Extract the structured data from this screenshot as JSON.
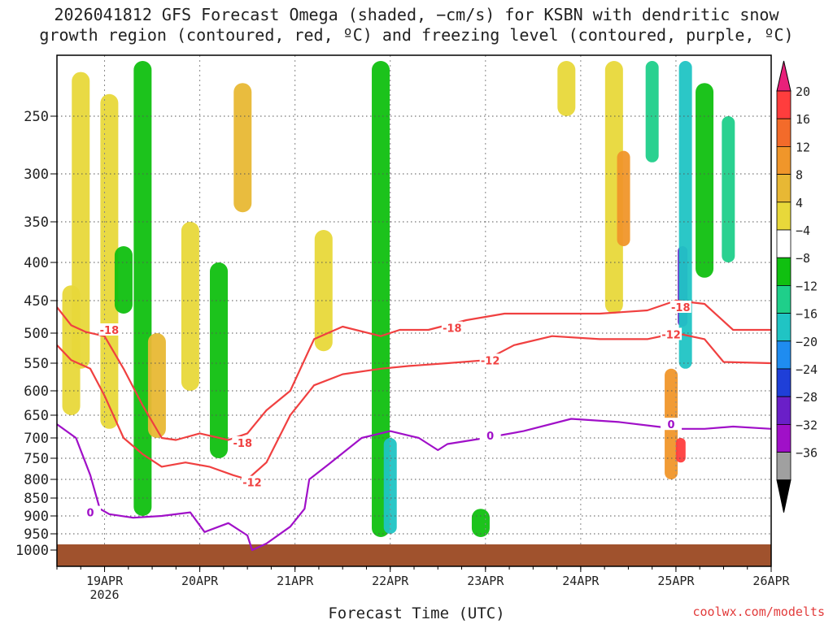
{
  "title_lines": [
    "2026041812 GFS Forecast Omega (shaded, −cm/s) for KSBN with dendritic snow",
    "growth region (contoured, red, ºC) and freezing level (contoured, purple, ºC)"
  ],
  "credit": "coolwx.com/modelts",
  "chart_data": {
    "type": "heatmap",
    "title": "2026041812 GFS Forecast Omega (shaded, −cm/s) for KSBN with dendritic snow growth region (contoured, red, ºC) and freezing level (contoured, purple, ºC)",
    "xlabel": "Forecast Time (UTC)",
    "ylabel": "",
    "x_range_days": [
      "2026-04-18T12",
      "2026-04-26T00"
    ],
    "x_ticks": [
      {
        "label": "19APR",
        "sub": "2026",
        "day": 19
      },
      {
        "label": "20APR",
        "sub": "",
        "day": 20
      },
      {
        "label": "21APR",
        "sub": "",
        "day": 21
      },
      {
        "label": "22APR",
        "sub": "",
        "day": 22
      },
      {
        "label": "23APR",
        "sub": "",
        "day": 23
      },
      {
        "label": "24APR",
        "sub": "",
        "day": 24
      },
      {
        "label": "25APR",
        "sub": "",
        "day": 25
      },
      {
        "label": "26APR",
        "sub": "",
        "day": 26
      }
    ],
    "y_ticks_hpa": [
      250,
      300,
      350,
      400,
      450,
      500,
      550,
      600,
      650,
      700,
      750,
      800,
      850,
      900,
      950,
      1000
    ],
    "y_range_hpa": [
      200,
      1000
    ],
    "colorbar": {
      "labels": [
        "20",
        "16",
        "12",
        "8",
        "4",
        "−4",
        "−8",
        "−12",
        "−16",
        "−20",
        "−24",
        "−28",
        "−32",
        "−36"
      ],
      "colors": [
        "#ff3d3d",
        "#f36b2a",
        "#f0962a",
        "#e8b834",
        "#e8d83a",
        "#ffffff",
        "#10c010",
        "#1fcf8a",
        "#20c4c4",
        "#1f8cf0",
        "#1f3fd8",
        "#6a1fc8",
        "#a010c8",
        "#a0a0a0"
      ],
      "top_cap_color": "#e8207a",
      "bottom_cap_color": "#000000"
    },
    "omega_areas": [
      {
        "day": 18.65,
        "p_top": 430,
        "p_bot": 650,
        "value": 4
      },
      {
        "day": 18.75,
        "p_top": 210,
        "p_bot": 560,
        "value": 4
      },
      {
        "day": 19.05,
        "p_top": 230,
        "p_bot": 680,
        "value": 4
      },
      {
        "day": 19.2,
        "p_top": 380,
        "p_bot": 470,
        "value": -8
      },
      {
        "day": 19.4,
        "p_top": 200,
        "p_bot": 900,
        "value": -8
      },
      {
        "day": 19.55,
        "p_top": 500,
        "p_bot": 700,
        "value": 8
      },
      {
        "day": 19.9,
        "p_top": 350,
        "p_bot": 600,
        "value": 4
      },
      {
        "day": 20.2,
        "p_top": 400,
        "p_bot": 750,
        "value": -8
      },
      {
        "day": 20.45,
        "p_top": 220,
        "p_bot": 340,
        "value": 8
      },
      {
        "day": 21.3,
        "p_top": 360,
        "p_bot": 530,
        "value": 4
      },
      {
        "day": 21.9,
        "p_top": 200,
        "p_bot": 960,
        "value": -8
      },
      {
        "day": 22.0,
        "p_top": 700,
        "p_bot": 950,
        "value": -16
      },
      {
        "day": 22.95,
        "p_top": 880,
        "p_bot": 960,
        "value": -8
      },
      {
        "day": 23.85,
        "p_top": 200,
        "p_bot": 250,
        "value": 4
      },
      {
        "day": 24.35,
        "p_top": 200,
        "p_bot": 470,
        "value": 4
      },
      {
        "day": 24.45,
        "p_top": 280,
        "p_bot": 380,
        "value": 12
      },
      {
        "day": 24.75,
        "p_top": 200,
        "p_bot": 290,
        "value": -12
      },
      {
        "day": 24.95,
        "p_top": 560,
        "p_bot": 800,
        "value": 12
      },
      {
        "day": 25.05,
        "p_top": 700,
        "p_bot": 760,
        "value": 20
      },
      {
        "day": 25.07,
        "p_top": 380,
        "p_bot": 490,
        "value": -28
      },
      {
        "day": 25.1,
        "p_top": 200,
        "p_bot": 560,
        "value": -16
      },
      {
        "day": 25.3,
        "p_top": 220,
        "p_bot": 420,
        "value": -8
      },
      {
        "day": 25.55,
        "p_top": 250,
        "p_bot": 400,
        "value": -12
      }
    ],
    "series": [
      {
        "name": "-18",
        "points": [
          [
            18.5,
            460
          ],
          [
            18.65,
            488
          ],
          [
            18.8,
            498
          ],
          [
            19.0,
            505
          ],
          [
            19.2,
            560
          ],
          [
            19.4,
            630
          ],
          [
            19.6,
            700
          ],
          [
            19.75,
            705
          ],
          [
            20.0,
            690
          ],
          [
            20.3,
            705
          ],
          [
            20.5,
            690
          ],
          [
            20.7,
            640
          ],
          [
            20.95,
            600
          ],
          [
            21.2,
            510
          ],
          [
            21.5,
            490
          ],
          [
            21.9,
            505
          ],
          [
            22.1,
            495
          ],
          [
            22.4,
            495
          ],
          [
            22.8,
            480
          ],
          [
            23.2,
            470
          ],
          [
            23.7,
            470
          ],
          [
            24.2,
            470
          ],
          [
            24.7,
            465
          ],
          [
            25.0,
            450
          ],
          [
            25.3,
            455
          ],
          [
            25.6,
            495
          ],
          [
            26.0,
            495
          ]
        ]
      },
      {
        "name": "-12",
        "points": [
          [
            18.5,
            520
          ],
          [
            18.65,
            545
          ],
          [
            18.85,
            560
          ],
          [
            19.0,
            610
          ],
          [
            19.2,
            700
          ],
          [
            19.4,
            740
          ],
          [
            19.6,
            770
          ],
          [
            19.85,
            760
          ],
          [
            20.1,
            770
          ],
          [
            20.35,
            790
          ],
          [
            20.5,
            800
          ],
          [
            20.7,
            760
          ],
          [
            20.95,
            650
          ],
          [
            21.2,
            590
          ],
          [
            21.5,
            570
          ],
          [
            21.9,
            560
          ],
          [
            22.2,
            555
          ],
          [
            22.6,
            550
          ],
          [
            23.0,
            545
          ],
          [
            23.3,
            520
          ],
          [
            23.7,
            505
          ],
          [
            24.2,
            510
          ],
          [
            24.7,
            510
          ],
          [
            25.0,
            500
          ],
          [
            25.3,
            510
          ],
          [
            25.5,
            548
          ],
          [
            26.0,
            550
          ]
        ]
      },
      {
        "name": "0",
        "points": [
          [
            18.5,
            670
          ],
          [
            18.7,
            700
          ],
          [
            18.85,
            790
          ],
          [
            18.95,
            880
          ],
          [
            19.05,
            895
          ],
          [
            19.3,
            905
          ],
          [
            19.6,
            900
          ],
          [
            19.9,
            890
          ],
          [
            20.05,
            945
          ],
          [
            20.3,
            920
          ],
          [
            20.5,
            955
          ],
          [
            20.55,
            1000
          ],
          [
            20.7,
            980
          ],
          [
            20.95,
            930
          ],
          [
            21.1,
            880
          ],
          [
            21.15,
            800
          ],
          [
            21.35,
            765
          ],
          [
            21.7,
            700
          ],
          [
            22.0,
            685
          ],
          [
            22.3,
            700
          ],
          [
            22.5,
            730
          ],
          [
            22.6,
            715
          ],
          [
            23.0,
            700
          ],
          [
            23.4,
            685
          ],
          [
            23.9,
            658
          ],
          [
            24.4,
            665
          ],
          [
            24.8,
            675
          ],
          [
            25.0,
            680
          ],
          [
            25.3,
            680
          ],
          [
            25.6,
            675
          ],
          [
            26.0,
            680
          ]
        ]
      }
    ],
    "contour_labels": [
      {
        "text": "-18",
        "day": 19.05,
        "p": 495,
        "color": "#f04040"
      },
      {
        "text": "-18",
        "day": 20.45,
        "p": 712,
        "color": "#f04040"
      },
      {
        "text": "-18",
        "day": 22.65,
        "p": 492,
        "color": "#f04040"
      },
      {
        "text": "-18",
        "day": 25.05,
        "p": 460,
        "color": "#f04040"
      },
      {
        "text": "-12",
        "day": 20.55,
        "p": 808,
        "color": "#f04040"
      },
      {
        "text": "-12",
        "day": 23.05,
        "p": 545,
        "color": "#f04040"
      },
      {
        "text": "-12",
        "day": 24.95,
        "p": 502,
        "color": "#f04040"
      },
      {
        "text": "0",
        "day": 18.85,
        "p": 890,
        "color": "#a010c8"
      },
      {
        "text": "0",
        "day": 23.05,
        "p": 695,
        "color": "#a010c8"
      },
      {
        "text": "0",
        "day": 24.95,
        "p": 670,
        "color": "#a010c8"
      }
    ],
    "ground_color": "#a0522d",
    "grid": true
  }
}
